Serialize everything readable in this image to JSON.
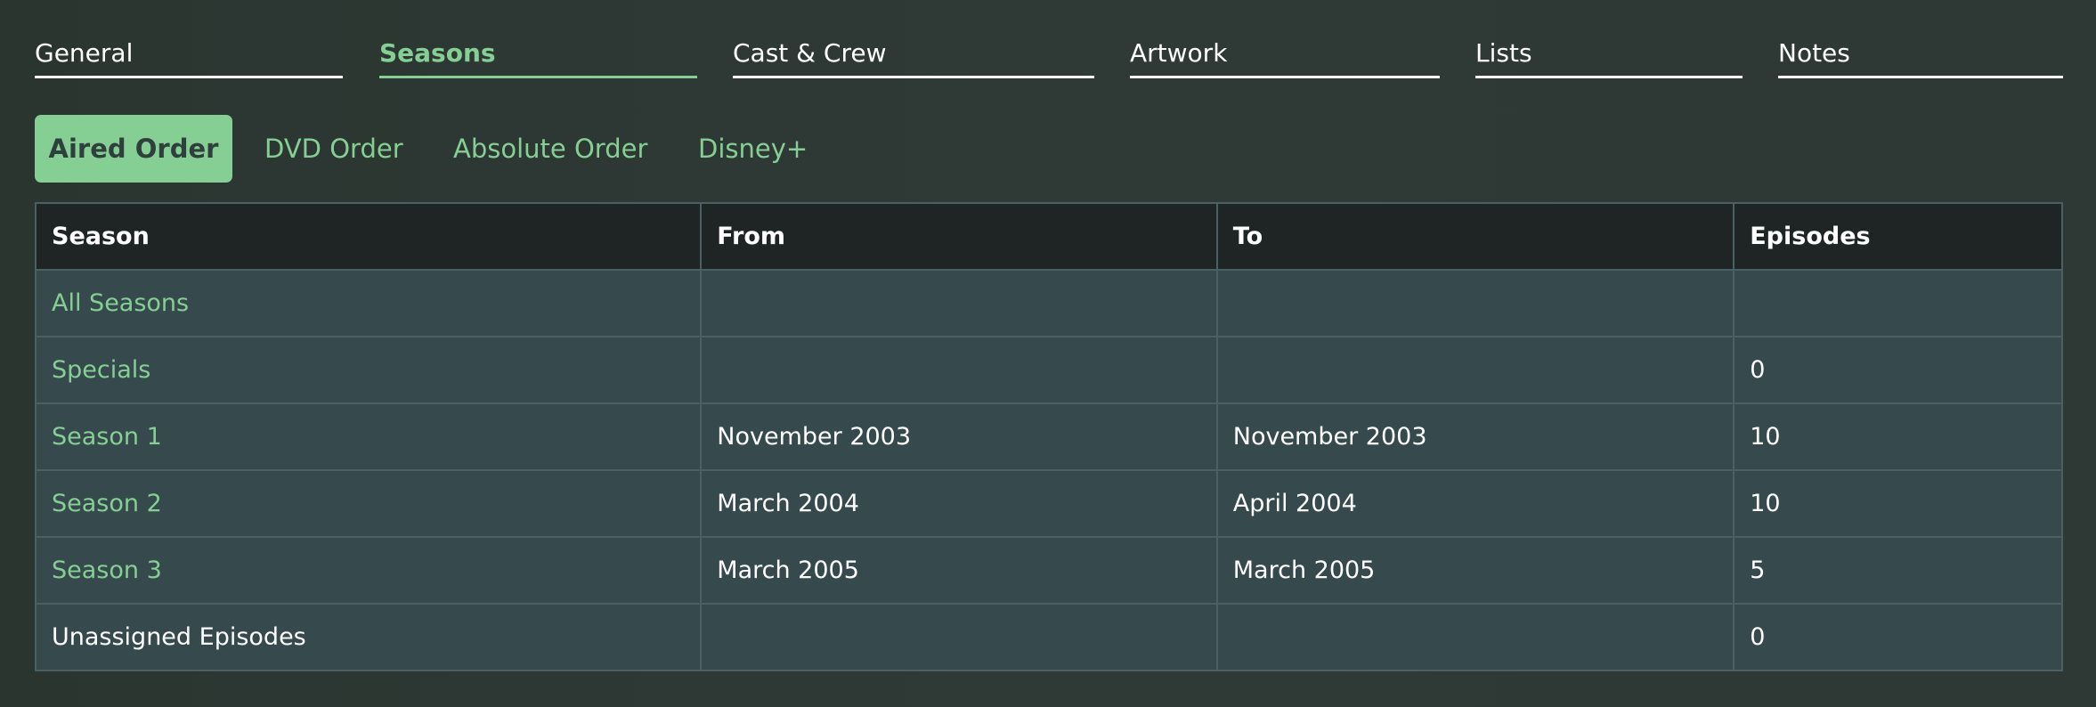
{
  "tabs": [
    {
      "label": "General",
      "active": false
    },
    {
      "label": "Seasons",
      "active": true
    },
    {
      "label": "Cast & Crew",
      "active": false
    },
    {
      "label": "Artwork",
      "active": false
    },
    {
      "label": "Lists",
      "active": false
    },
    {
      "label": "Notes",
      "active": false
    }
  ],
  "order_tabs": [
    {
      "label": "Aired Order",
      "active": true
    },
    {
      "label": "DVD Order",
      "active": false
    },
    {
      "label": "Absolute Order",
      "active": false
    },
    {
      "label": "Disney+",
      "active": false
    }
  ],
  "table": {
    "headers": [
      "Season",
      "From",
      "To",
      "Episodes"
    ],
    "rows": [
      [
        "All Seasons",
        "",
        "",
        ""
      ],
      [
        "Specials",
        "",
        "",
        "0"
      ],
      [
        "Season 1",
        "November 2003",
        "November 2003",
        "10"
      ],
      [
        "Season 2",
        "March 2004",
        "April 2004",
        "10"
      ],
      [
        "Season 3",
        "March 2005",
        "March 2005",
        "5"
      ],
      [
        "Unassigned Episodes",
        "",
        "",
        "0"
      ]
    ]
  },
  "colors": {
    "accent": "#86cf94",
    "header_bg": "#1f2524",
    "row_bg": "#364a4d"
  }
}
